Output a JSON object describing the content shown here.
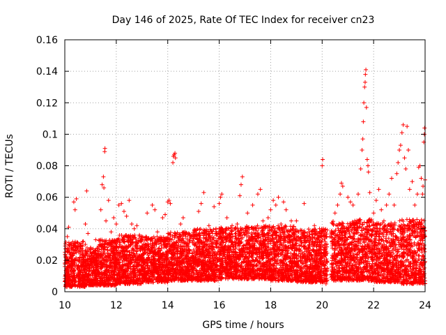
{
  "chart_data": {
    "type": "scatter",
    "title": "Day 146 of 2025, Rate Of TEC Index for receiver cn23",
    "xlabel": "GPS time / hours",
    "ylabel": "ROTI / TECUs",
    "xlim": [
      10,
      24
    ],
    "ylim": [
      0,
      0.16
    ],
    "x_ticks": [
      10,
      12,
      14,
      16,
      18,
      20,
      22,
      24
    ],
    "x_tick_labels": [
      "10",
      "12",
      "14",
      "16",
      "18",
      "20",
      "22",
      "24"
    ],
    "y_ticks": [
      0,
      0.02,
      0.04,
      0.06,
      0.08,
      0.1,
      0.12,
      0.14,
      0.16
    ],
    "y_tick_labels": [
      "0",
      "0.02",
      "0.04",
      "0.06",
      "0.08",
      "0.1",
      "0.12",
      "0.14",
      "0.16"
    ],
    "grid": true,
    "marker": "+",
    "color": "#ff0000",
    "series": [
      {
        "name": "ROTI",
        "points": [
          [
            10.05,
            0.012
          ],
          [
            10.1,
            0.035
          ],
          [
            10.15,
            0.041
          ],
          [
            10.2,
            0.022
          ],
          [
            10.3,
            0.018
          ],
          [
            10.35,
            0.057
          ],
          [
            10.4,
            0.052
          ],
          [
            10.45,
            0.059
          ],
          [
            10.5,
            0.015
          ],
          [
            10.6,
            0.024
          ],
          [
            10.7,
            0.019
          ],
          [
            10.8,
            0.043
          ],
          [
            10.85,
            0.064
          ],
          [
            10.9,
            0.037
          ],
          [
            11.0,
            0.028
          ],
          [
            11.1,
            0.021
          ],
          [
            11.2,
            0.033
          ],
          [
            11.3,
            0.016
          ],
          [
            11.4,
            0.052
          ],
          [
            11.45,
            0.068
          ],
          [
            11.5,
            0.073
          ],
          [
            11.52,
            0.066
          ],
          [
            11.55,
            0.089
          ],
          [
            11.56,
            0.091
          ],
          [
            11.6,
            0.045
          ],
          [
            11.7,
            0.058
          ],
          [
            11.8,
            0.038
          ],
          [
            11.9,
            0.047
          ],
          [
            12.0,
            0.043
          ],
          [
            12.1,
            0.055
          ],
          [
            12.2,
            0.056
          ],
          [
            12.3,
            0.051
          ],
          [
            12.4,
            0.048
          ],
          [
            12.5,
            0.058
          ],
          [
            12.6,
            0.043
          ],
          [
            12.7,
            0.04
          ],
          [
            12.8,
            0.042
          ],
          [
            12.9,
            0.036
          ],
          [
            13.0,
            0.035
          ],
          [
            13.2,
            0.05
          ],
          [
            13.4,
            0.055
          ],
          [
            13.5,
            0.052
          ],
          [
            13.6,
            0.038
          ],
          [
            13.8,
            0.047
          ],
          [
            13.9,
            0.049
          ],
          [
            14.0,
            0.057
          ],
          [
            14.05,
            0.058
          ],
          [
            14.1,
            0.056
          ],
          [
            14.2,
            0.082
          ],
          [
            14.22,
            0.086
          ],
          [
            14.25,
            0.087
          ],
          [
            14.28,
            0.088
          ],
          [
            14.3,
            0.085
          ],
          [
            14.5,
            0.043
          ],
          [
            14.6,
            0.047
          ],
          [
            14.8,
            0.037
          ],
          [
            15.0,
            0.034
          ],
          [
            15.2,
            0.051
          ],
          [
            15.3,
            0.056
          ],
          [
            15.4,
            0.063
          ],
          [
            15.6,
            0.042
          ],
          [
            15.8,
            0.054
          ],
          [
            16.0,
            0.056
          ],
          [
            16.05,
            0.06
          ],
          [
            16.1,
            0.062
          ],
          [
            16.3,
            0.047
          ],
          [
            16.5,
            0.042
          ],
          [
            16.7,
            0.043
          ],
          [
            16.8,
            0.061
          ],
          [
            16.85,
            0.068
          ],
          [
            16.9,
            0.073
          ],
          [
            17.1,
            0.05
          ],
          [
            17.3,
            0.055
          ],
          [
            17.5,
            0.062
          ],
          [
            17.6,
            0.065
          ],
          [
            17.7,
            0.045
          ],
          [
            17.9,
            0.047
          ],
          [
            18.0,
            0.052
          ],
          [
            18.1,
            0.058
          ],
          [
            18.2,
            0.055
          ],
          [
            18.3,
            0.06
          ],
          [
            18.4,
            0.043
          ],
          [
            18.5,
            0.057
          ],
          [
            18.6,
            0.052
          ],
          [
            18.8,
            0.045
          ],
          [
            19.0,
            0.045
          ],
          [
            19.3,
            0.056
          ],
          [
            19.5,
            0.038
          ],
          [
            19.7,
            0.042
          ],
          [
            19.9,
            0.04
          ],
          [
            20.0,
            0.08
          ],
          [
            20.02,
            0.084
          ],
          [
            20.05,
            0.04
          ],
          [
            20.1,
            0.028
          ],
          [
            20.15,
            0.005
          ],
          [
            20.3,
            0.035
          ],
          [
            20.5,
            0.05
          ],
          [
            20.6,
            0.055
          ],
          [
            20.7,
            0.062
          ],
          [
            20.75,
            0.069
          ],
          [
            20.8,
            0.067
          ],
          [
            21.0,
            0.06
          ],
          [
            21.1,
            0.057
          ],
          [
            21.2,
            0.055
          ],
          [
            21.4,
            0.062
          ],
          [
            21.5,
            0.078
          ],
          [
            21.55,
            0.09
          ],
          [
            21.58,
            0.097
          ],
          [
            21.6,
            0.108
          ],
          [
            21.62,
            0.12
          ],
          [
            21.65,
            0.13
          ],
          [
            21.67,
            0.133
          ],
          [
            21.68,
            0.138
          ],
          [
            21.7,
            0.141
          ],
          [
            21.72,
            0.117
          ],
          [
            21.75,
            0.084
          ],
          [
            21.78,
            0.08
          ],
          [
            21.8,
            0.076
          ],
          [
            21.85,
            0.063
          ],
          [
            21.9,
            0.045
          ],
          [
            22.0,
            0.05
          ],
          [
            22.1,
            0.058
          ],
          [
            22.2,
            0.065
          ],
          [
            22.3,
            0.052
          ],
          [
            22.4,
            0.045
          ],
          [
            22.5,
            0.055
          ],
          [
            22.6,
            0.062
          ],
          [
            22.7,
            0.072
          ],
          [
            22.8,
            0.055
          ],
          [
            22.9,
            0.075
          ],
          [
            22.95,
            0.082
          ],
          [
            23.0,
            0.09
          ],
          [
            23.05,
            0.093
          ],
          [
            23.1,
            0.101
          ],
          [
            23.15,
            0.106
          ],
          [
            23.2,
            0.085
          ],
          [
            23.25,
            0.078
          ],
          [
            23.3,
            0.105
          ],
          [
            23.35,
            0.09
          ],
          [
            23.4,
            0.065
          ],
          [
            23.5,
            0.07
          ],
          [
            23.6,
            0.055
          ],
          [
            23.7,
            0.062
          ],
          [
            23.75,
            0.079
          ],
          [
            23.8,
            0.08
          ],
          [
            23.85,
            0.072
          ],
          [
            23.9,
            0.062
          ],
          [
            23.92,
            0.067
          ],
          [
            23.95,
            0.095
          ],
          [
            23.97,
            0.1
          ],
          [
            23.98,
            0.104
          ],
          [
            24.0,
            0.071
          ]
        ]
      }
    ],
    "noise_band": [
      {
        "x": [
          10.0,
          10.8
        ],
        "y": [
          0.003,
          0.032
        ]
      },
      {
        "x": [
          10.8,
          11.3
        ],
        "y": [
          0.004,
          0.028
        ]
      },
      {
        "x": [
          11.3,
          12.0
        ],
        "y": [
          0.004,
          0.033
        ]
      },
      {
        "x": [
          12.0,
          13.0
        ],
        "y": [
          0.005,
          0.036
        ]
      },
      {
        "x": [
          13.0,
          14.0
        ],
        "y": [
          0.006,
          0.035
        ]
      },
      {
        "x": [
          14.0,
          15.0
        ],
        "y": [
          0.007,
          0.038
        ]
      },
      {
        "x": [
          15.0,
          16.0
        ],
        "y": [
          0.007,
          0.04
        ]
      },
      {
        "x": [
          16.0,
          17.0
        ],
        "y": [
          0.008,
          0.041
        ]
      },
      {
        "x": [
          17.0,
          18.0
        ],
        "y": [
          0.008,
          0.042
        ]
      },
      {
        "x": [
          18.0,
          19.0
        ],
        "y": [
          0.007,
          0.042
        ]
      },
      {
        "x": [
          19.0,
          20.2
        ],
        "y": [
          0.006,
          0.04
        ]
      },
      {
        "x": [
          20.35,
          21.0
        ],
        "y": [
          0.007,
          0.045
        ]
      },
      {
        "x": [
          21.0,
          22.0
        ],
        "y": [
          0.007,
          0.046
        ]
      },
      {
        "x": [
          22.0,
          23.0
        ],
        "y": [
          0.006,
          0.044
        ]
      },
      {
        "x": [
          23.0,
          24.0
        ],
        "y": [
          0.005,
          0.046
        ]
      }
    ]
  }
}
